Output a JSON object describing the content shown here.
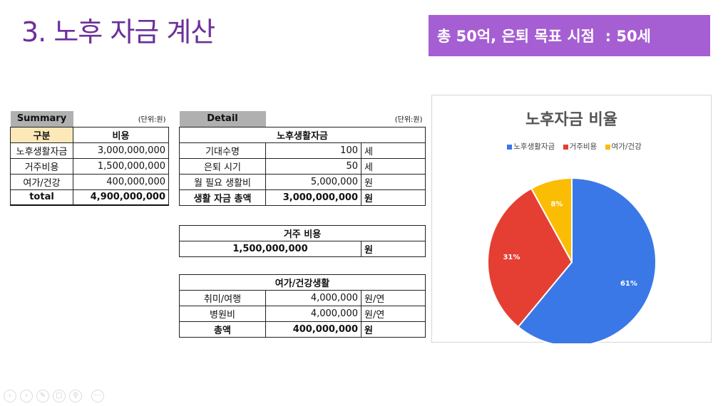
{
  "slide": {
    "title": "3. 노후 자금 계산",
    "banner": "총 50억, 은퇴 목표 시점  : 50세"
  },
  "summary": {
    "header": "Summary",
    "unit": "(단위:원)",
    "col1": "구분",
    "col2": "비용",
    "rows": [
      {
        "label": "노후생활자금",
        "value": "3,000,000,000"
      },
      {
        "label": "거주비용",
        "value": "1,500,000,000"
      },
      {
        "label": "여가/건강",
        "value": "400,000,000"
      }
    ],
    "total_label": "total",
    "total_value": "4,900,000,000"
  },
  "detail": {
    "header": "Detail",
    "unit": "(단위:원)",
    "living": {
      "title": "노후생활자금",
      "rows": [
        {
          "label": "기대수명",
          "value": "100",
          "unit": "세"
        },
        {
          "label": "은퇴 시기",
          "value": "50",
          "unit": "세"
        },
        {
          "label": "월 필요 생활비",
          "value": "5,000,000",
          "unit": "원"
        }
      ],
      "total_label": "생활 자금 총액",
      "total_value": "3,000,000,000",
      "total_unit": "원"
    },
    "housing": {
      "title": "거주 비용",
      "value": "1,500,000,000",
      "unit": "원"
    },
    "leisure": {
      "title": "여가/건강생활",
      "rows": [
        {
          "label": "취미/여행",
          "value": "4,000,000",
          "unit": "원/연"
        },
        {
          "label": "병원비",
          "value": "4,000,000",
          "unit": "원/연"
        }
      ],
      "total_label": "총액",
      "total_value": "400,000,000",
      "total_unit": "원"
    }
  },
  "chart_data": {
    "type": "pie",
    "title": "노후자금 비율",
    "categories": [
      "노후생활자금",
      "거주비용",
      "여가/건강"
    ],
    "values": [
      61,
      31,
      8
    ],
    "labels": [
      "61%",
      "31%",
      "8%"
    ],
    "colors": [
      "#3b78e7",
      "#e53f33",
      "#fbbc04"
    ],
    "legend": "top"
  },
  "controls": [
    "prev-icon",
    "next-icon",
    "pen-icon",
    "slides-icon",
    "zoom-icon",
    "more-icon"
  ]
}
